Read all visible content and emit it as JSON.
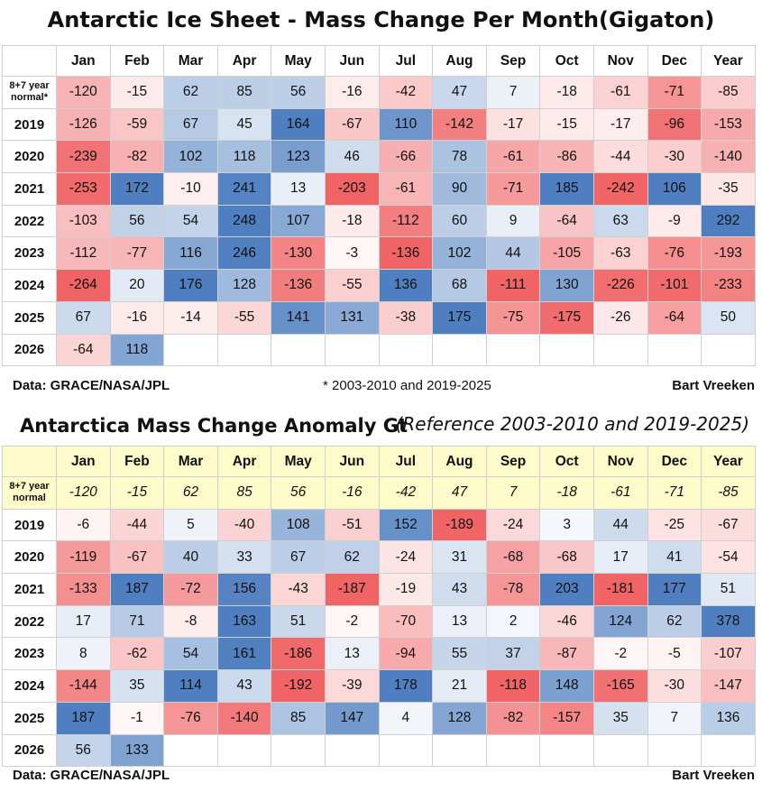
{
  "chart_data": [
    {
      "type": "table",
      "title": "Antarctic Ice Sheet - Mass Change Per Month(Gigaton)",
      "columns": [
        "Jan",
        "Feb",
        "Mar",
        "Apr",
        "May",
        "Jun",
        "Jul",
        "Aug",
        "Sep",
        "Oct",
        "Nov",
        "Dec",
        "Year"
      ],
      "normal_label": "8+7 year normal*",
      "rows": [
        {
          "label": "8+7 year normal*",
          "values": [
            -120,
            -15,
            62,
            85,
            56,
            -16,
            -42,
            47,
            7,
            -18,
            -61,
            -71,
            -85
          ]
        },
        {
          "label": "2019",
          "values": [
            -126,
            -59,
            67,
            45,
            164,
            -67,
            110,
            -142,
            -17,
            -15,
            -17,
            -96,
            -153
          ]
        },
        {
          "label": "2020",
          "values": [
            -239,
            -82,
            102,
            118,
            123,
            46,
            -66,
            78,
            -61,
            -86,
            -44,
            -30,
            -140
          ]
        },
        {
          "label": "2021",
          "values": [
            -253,
            172,
            -10,
            241,
            13,
            -203,
            -61,
            90,
            -71,
            185,
            -242,
            106,
            -35
          ]
        },
        {
          "label": "2022",
          "values": [
            -103,
            56,
            54,
            248,
            107,
            -18,
            -112,
            60,
            9,
            -64,
            63,
            -9,
            292
          ]
        },
        {
          "label": "2023",
          "values": [
            -112,
            -77,
            116,
            246,
            -130,
            -3,
            -136,
            102,
            44,
            -105,
            -63,
            -76,
            -193
          ]
        },
        {
          "label": "2024",
          "values": [
            -264,
            20,
            176,
            128,
            -136,
            -55,
            136,
            68,
            -111,
            130,
            -226,
            -101,
            -233
          ]
        },
        {
          "label": "2025",
          "values": [
            67,
            -16,
            -14,
            -55,
            141,
            131,
            -38,
            175,
            -75,
            -175,
            -26,
            -64,
            50
          ]
        },
        {
          "label": "2026",
          "values": [
            -64,
            118,
            null,
            null,
            null,
            null,
            null,
            null,
            null,
            null,
            null,
            null,
            null
          ]
        }
      ],
      "footer_left": "Data: GRACE/NASA/JPL",
      "footnote": "* 2003-2010 and 2019-2025",
      "footer_right": "Bart Vreeken"
    },
    {
      "type": "table",
      "title": "Antarctica Mass Change Anomaly Gt",
      "subtitle": "(Reference 2003-2010 and 2019-2025)",
      "columns": [
        "Jan",
        "Feb",
        "Mar",
        "Apr",
        "May",
        "Jun",
        "Jul",
        "Aug",
        "Sep",
        "Oct",
        "Nov",
        "Dec",
        "Year"
      ],
      "rows": [
        {
          "label": "8+7 year normal",
          "values": [
            -120,
            -15,
            62,
            85,
            56,
            -16,
            -42,
            47,
            7,
            -18,
            -61,
            -71,
            -85
          ]
        },
        {
          "label": "2019",
          "values": [
            -6,
            -44,
            5,
            -40,
            108,
            -51,
            152,
            -189,
            -24,
            3,
            44,
            -25,
            -67
          ]
        },
        {
          "label": "2020",
          "values": [
            -119,
            -67,
            40,
            33,
            67,
            62,
            -24,
            31,
            -68,
            -68,
            17,
            41,
            -54
          ]
        },
        {
          "label": "2021",
          "values": [
            -133,
            187,
            -72,
            156,
            -43,
            -187,
            -19,
            43,
            -78,
            203,
            -181,
            177,
            51
          ]
        },
        {
          "label": "2022",
          "values": [
            17,
            71,
            -8,
            163,
            51,
            -2,
            -70,
            13,
            2,
            -46,
            124,
            62,
            378
          ]
        },
        {
          "label": "2023",
          "values": [
            8,
            -62,
            54,
            161,
            -186,
            13,
            -94,
            55,
            37,
            -87,
            -2,
            -5,
            -107
          ]
        },
        {
          "label": "2024",
          "values": [
            -144,
            35,
            114,
            43,
            -192,
            -39,
            178,
            21,
            -118,
            148,
            -165,
            -30,
            -147
          ]
        },
        {
          "label": "2025",
          "values": [
            187,
            -1,
            -76,
            -140,
            85,
            147,
            4,
            128,
            -82,
            -157,
            35,
            7,
            136
          ]
        },
        {
          "label": "2026",
          "values": [
            56,
            133,
            null,
            null,
            null,
            null,
            null,
            null,
            null,
            null,
            null,
            null,
            null
          ]
        }
      ],
      "footer_left": "Data: GRACE/NASA/JPL",
      "footer_right": "Bart Vreeken"
    }
  ],
  "colors": {
    "positive": "#4f7fc0",
    "negative": "#f06466",
    "header_bg_table2": "#fdfbc9"
  }
}
